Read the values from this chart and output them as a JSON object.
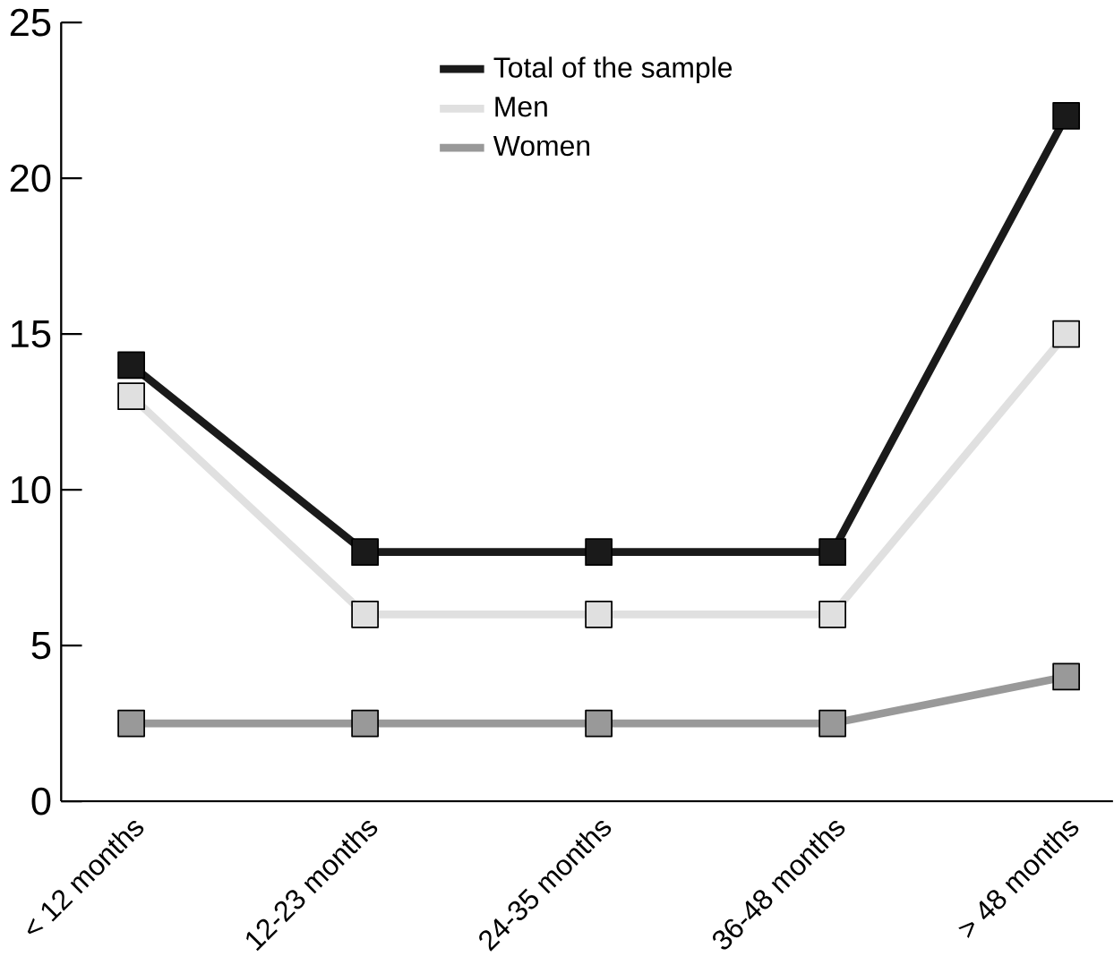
{
  "chart_data": {
    "type": "line",
    "categories": [
      "< 12 months",
      "12-23 months",
      "24-35 months",
      "36-48 months",
      "> 48 months"
    ],
    "series": [
      {
        "name": "Total of the sample",
        "color": "#1a1a1a",
        "values": [
          14,
          8,
          8,
          8,
          22
        ]
      },
      {
        "name": "Men",
        "color": "#e0e0e0",
        "values": [
          13,
          6,
          6,
          6,
          15
        ]
      },
      {
        "name": "Women",
        "color": "#999999",
        "values": [
          2.5,
          2.5,
          2.5,
          2.5,
          4
        ]
      }
    ],
    "ylim": [
      0,
      25
    ],
    "yticks": [
      0,
      5,
      10,
      15,
      20,
      25
    ],
    "marker": "square",
    "legend": "top",
    "grid": false
  }
}
